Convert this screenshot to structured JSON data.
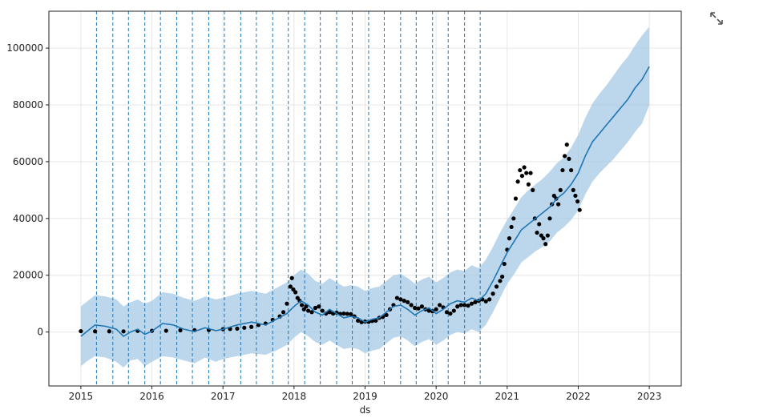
{
  "chart_data": {
    "type": "line",
    "title": "",
    "xlabel": "ds",
    "ylabel": "",
    "x_range": [
      2014.55,
      2023.45
    ],
    "y_range": [
      -19000,
      113000
    ],
    "grid": true,
    "legend": "none",
    "colors": {
      "forecast": "#1f77b4",
      "interval": "#a6c8e4",
      "observed": "#000000",
      "changepoint": "#1f77b4",
      "grid": "#e6e6e6"
    },
    "x_ticks": [
      {
        "value": 2015,
        "label": "2015"
      },
      {
        "value": 2016,
        "label": "2016"
      },
      {
        "value": 2017,
        "label": "2017"
      },
      {
        "value": 2018,
        "label": "2018"
      },
      {
        "value": 2019,
        "label": "2019"
      },
      {
        "value": 2020,
        "label": "2020"
      },
      {
        "value": 2021,
        "label": "2021"
      },
      {
        "value": 2022,
        "label": "2022"
      },
      {
        "value": 2023,
        "label": "2023"
      }
    ],
    "y_ticks": [
      {
        "value": 0,
        "label": "0"
      },
      {
        "value": 20000,
        "label": "20000"
      },
      {
        "value": 40000,
        "label": "40000"
      },
      {
        "value": 60000,
        "label": "60000"
      },
      {
        "value": 80000,
        "label": "80000"
      },
      {
        "value": 100000,
        "label": "100000"
      }
    ],
    "changepoints": [
      2015.22,
      2015.45,
      2015.67,
      2015.9,
      2016.12,
      2016.35,
      2016.57,
      2016.8,
      2017.02,
      2017.25,
      2017.47,
      2017.7,
      2017.92,
      2018.15,
      2018.37,
      2018.6,
      2018.82,
      2019.05,
      2019.27,
      2019.5,
      2019.72,
      2019.95,
      2020.17,
      2020.4,
      2020.62
    ],
    "forecast": {
      "x": [
        2015.0,
        2015.1,
        2015.2,
        2015.35,
        2015.5,
        2015.6,
        2015.7,
        2015.8,
        2015.9,
        2016.0,
        2016.15,
        2016.3,
        2016.45,
        2016.6,
        2016.75,
        2016.9,
        2017.0,
        2017.2,
        2017.4,
        2017.6,
        2017.75,
        2017.9,
        2018.0,
        2018.1,
        2018.2,
        2018.3,
        2018.4,
        2018.5,
        2018.6,
        2018.7,
        2018.8,
        2018.9,
        2019.0,
        2019.1,
        2019.2,
        2019.3,
        2019.4,
        2019.5,
        2019.6,
        2019.7,
        2019.8,
        2019.9,
        2020.0,
        2020.1,
        2020.2,
        2020.3,
        2020.4,
        2020.5,
        2020.6,
        2020.7,
        2020.8,
        2020.9,
        2021.0,
        2021.1,
        2021.2,
        2021.3,
        2021.4,
        2021.5,
        2021.6,
        2021.7,
        2021.8,
        2021.9,
        2022.0,
        2022.1,
        2022.2,
        2022.3,
        2022.4,
        2022.5,
        2022.6,
        2022.7,
        2022.8,
        2022.9,
        2023.0
      ],
      "yhat": [
        -1500,
        500,
        2500,
        2000,
        1000,
        -1500,
        0,
        1000,
        -800,
        300,
        3000,
        2500,
        1000,
        200,
        1500,
        500,
        1000,
        2500,
        3500,
        2500,
        4500,
        6500,
        9000,
        11000,
        9500,
        7000,
        6000,
        8000,
        6500,
        5000,
        5500,
        5000,
        3500,
        4500,
        5000,
        7000,
        9000,
        9500,
        8000,
        6000,
        7500,
        8500,
        6500,
        8000,
        10000,
        11000,
        10500,
        12000,
        11000,
        13500,
        18000,
        23000,
        28000,
        32000,
        36000,
        38000,
        40000,
        42000,
        44000,
        47000,
        49000,
        52000,
        56000,
        62000,
        67000,
        70000,
        73000,
        76000,
        79000,
        82000,
        86000,
        89000,
        93500
      ],
      "lower": [
        -12000,
        -10000,
        -8500,
        -9000,
        -10500,
        -12500,
        -10000,
        -9500,
        -12000,
        -10500,
        -8500,
        -9000,
        -10000,
        -11000,
        -9000,
        -10500,
        -9500,
        -8500,
        -7500,
        -8000,
        -6500,
        -4500,
        -2000,
        0,
        -1500,
        -3500,
        -4500,
        -3000,
        -4500,
        -6000,
        -5500,
        -6000,
        -7500,
        -6500,
        -6000,
        -4000,
        -2000,
        -1500,
        -3000,
        -5000,
        -3500,
        -2500,
        -4500,
        -3000,
        -1000,
        0,
        -500,
        1000,
        0,
        2500,
        7000,
        12000,
        17000,
        20500,
        24500,
        26500,
        28500,
        30000,
        32000,
        35000,
        37000,
        39500,
        43000,
        48500,
        53000,
        56000,
        58500,
        61000,
        64000,
        67000,
        70500,
        73500,
        80000
      ],
      "upper": [
        9000,
        11000,
        13000,
        12500,
        11500,
        9000,
        10500,
        11500,
        10000,
        11000,
        14000,
        13500,
        12000,
        11000,
        12500,
        11500,
        12000,
        13500,
        14500,
        13500,
        15500,
        17500,
        20000,
        22000,
        20500,
        18000,
        17000,
        19000,
        17500,
        16000,
        16500,
        16000,
        14500,
        15500,
        16000,
        18000,
        20000,
        20500,
        19000,
        17000,
        18500,
        19500,
        17500,
        19000,
        21000,
        22000,
        21500,
        23500,
        22500,
        25500,
        30000,
        35000,
        39500,
        43500,
        47500,
        50000,
        52000,
        54000,
        56500,
        59500,
        61500,
        65000,
        69500,
        75500,
        80500,
        84000,
        87000,
        90500,
        94000,
        97000,
        101000,
        104500,
        107500
      ]
    },
    "observed": {
      "x": [
        2015.0,
        2015.2,
        2015.4,
        2015.6,
        2015.8,
        2016.0,
        2016.2,
        2016.4,
        2016.6,
        2016.8,
        2017.0,
        2017.1,
        2017.2,
        2017.3,
        2017.4,
        2017.5,
        2017.6,
        2017.7,
        2017.8,
        2017.85,
        2017.9,
        2017.95,
        2017.97,
        2017.99,
        2018.02,
        2018.05,
        2018.08,
        2018.11,
        2018.14,
        2018.17,
        2018.2,
        2018.25,
        2018.3,
        2018.35,
        2018.4,
        2018.45,
        2018.5,
        2018.55,
        2018.6,
        2018.65,
        2018.7,
        2018.75,
        2018.8,
        2018.85,
        2018.9,
        2018.95,
        2019.0,
        2019.05,
        2019.1,
        2019.15,
        2019.2,
        2019.25,
        2019.3,
        2019.35,
        2019.4,
        2019.45,
        2019.5,
        2019.55,
        2019.6,
        2019.65,
        2019.7,
        2019.75,
        2019.8,
        2019.85,
        2019.9,
        2019.95,
        2020.0,
        2020.05,
        2020.1,
        2020.15,
        2020.2,
        2020.25,
        2020.3,
        2020.35,
        2020.4,
        2020.45,
        2020.5,
        2020.55,
        2020.6,
        2020.65,
        2020.7,
        2020.75,
        2020.8,
        2020.85,
        2020.9,
        2020.93,
        2020.96,
        2021.0,
        2021.03,
        2021.06,
        2021.09,
        2021.12,
        2021.15,
        2021.18,
        2021.21,
        2021.24,
        2021.27,
        2021.3,
        2021.33,
        2021.36,
        2021.39,
        2021.42,
        2021.45,
        2021.48,
        2021.51,
        2021.54,
        2021.57,
        2021.6,
        2021.63,
        2021.66,
        2021.69,
        2021.72,
        2021.75,
        2021.78,
        2021.81,
        2021.84,
        2021.87,
        2021.9,
        2021.93,
        2021.96,
        2021.99,
        2022.02
      ],
      "y": [
        300,
        250,
        250,
        230,
        400,
        430,
        450,
        600,
        650,
        700,
        1000,
        1100,
        1200,
        1500,
        1800,
        2500,
        3000,
        4300,
        5500,
        7000,
        10000,
        16000,
        19000,
        15000,
        14000,
        12000,
        11000,
        9500,
        8000,
        9000,
        7500,
        7000,
        8500,
        9000,
        7500,
        6500,
        7000,
        6500,
        6800,
        6400,
        6500,
        6400,
        6300,
        5500,
        4000,
        3500,
        3700,
        3600,
        3900,
        4000,
        5000,
        5300,
        6000,
        8000,
        9500,
        12000,
        11500,
        11000,
        10500,
        9500,
        8500,
        8300,
        9000,
        8000,
        7500,
        7300,
        8000,
        9500,
        8700,
        7000,
        6500,
        7500,
        9000,
        9500,
        9500,
        9300,
        10000,
        10500,
        11000,
        11500,
        10800,
        11500,
        13500,
        16000,
        18000,
        19500,
        24000,
        29000,
        33000,
        37000,
        40000,
        47000,
        53000,
        57000,
        55000,
        58000,
        56000,
        52000,
        56000,
        50000,
        40000,
        35000,
        38000,
        34000,
        33000,
        31000,
        34000,
        40000,
        45000,
        48000,
        47000,
        45000,
        50000,
        57000,
        62000,
        66000,
        61000,
        57000,
        50000,
        48000,
        46000,
        43000
      ]
    }
  }
}
